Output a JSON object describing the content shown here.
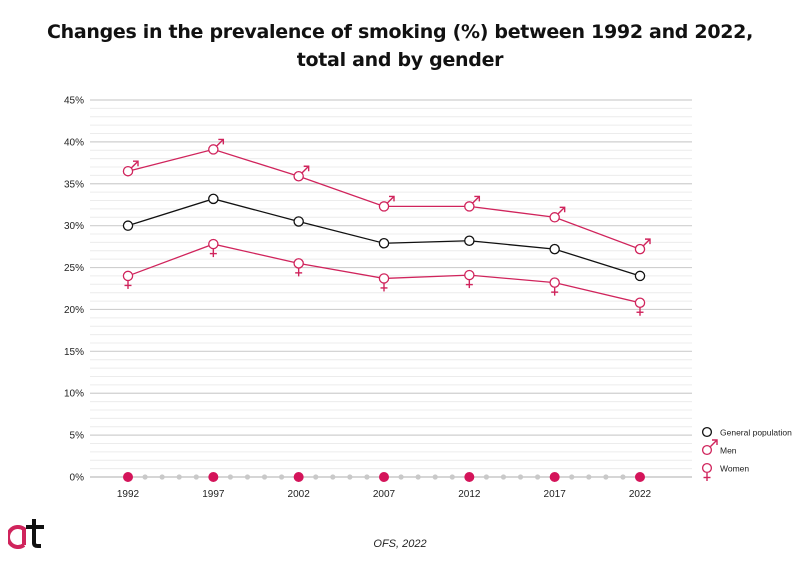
{
  "title_line1": "Changes in the prevalence of smoking (%) between 1992 and 2022,",
  "title_line2": "total and by gender",
  "source": "OFS, 2022",
  "colors": {
    "general": "#111111",
    "men": "#d0245c",
    "women": "#d0245c",
    "grid": "#cfcfcf",
    "minor": "#ececec"
  },
  "chart_data": {
    "type": "line",
    "x": [
      "1992",
      "1997",
      "2002",
      "2007",
      "2012",
      "2017",
      "2022"
    ],
    "ylim": [
      0,
      45
    ],
    "yticks": [
      "0%",
      "5%",
      "10%",
      "15%",
      "20%",
      "25%",
      "30%",
      "35%",
      "40%",
      "45%"
    ],
    "grid": true,
    "legend": "right",
    "series": [
      {
        "name": "General population",
        "key": "general",
        "values": [
          30.0,
          33.2,
          30.5,
          27.9,
          28.2,
          27.2,
          24.0
        ]
      },
      {
        "name": "Men",
        "key": "men",
        "values": [
          36.5,
          39.1,
          35.9,
          32.3,
          32.3,
          31.0,
          27.2
        ]
      },
      {
        "name": "Women",
        "key": "women",
        "values": [
          24.0,
          27.8,
          25.5,
          23.7,
          24.1,
          23.2,
          20.8
        ]
      }
    ]
  }
}
